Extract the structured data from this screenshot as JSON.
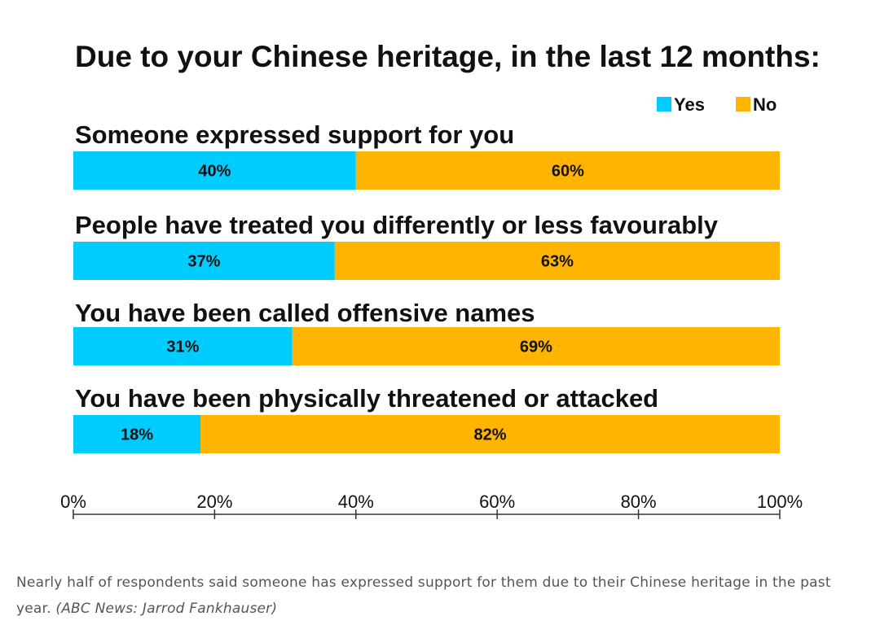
{
  "chart_data": {
    "type": "bar",
    "orientation": "horizontal",
    "stacked": true,
    "title": "Due to your Chinese heritage, in the last 12 months:",
    "categories": [
      "Someone expressed support for you",
      "People have treated you differently or less favourably",
      "You have been called offensive names",
      "You have been physically threatened or attacked"
    ],
    "series": [
      {
        "name": "Yes",
        "color": "#00ccff",
        "values": [
          40,
          37,
          31,
          18
        ],
        "labels": [
          "40%",
          "37%",
          "31%",
          "18%"
        ]
      },
      {
        "name": "No",
        "color": "#ffb400",
        "values": [
          60,
          63,
          69,
          82
        ],
        "labels": [
          "60%",
          "63%",
          "69%",
          "82%"
        ]
      }
    ],
    "xlim": [
      0,
      100
    ],
    "x_ticks": [
      0,
      20,
      40,
      60,
      80,
      100
    ],
    "x_tick_labels": [
      "0%",
      "20%",
      "40%",
      "60%",
      "80%",
      "100%"
    ],
    "legend_position": "top-right",
    "grid": false
  },
  "caption": {
    "text": "Nearly half of respondents said someone has expressed support for them due to their Chinese heritage in the past year.",
    "credit": "(ABC News: Jarrod Fankhauser)"
  }
}
